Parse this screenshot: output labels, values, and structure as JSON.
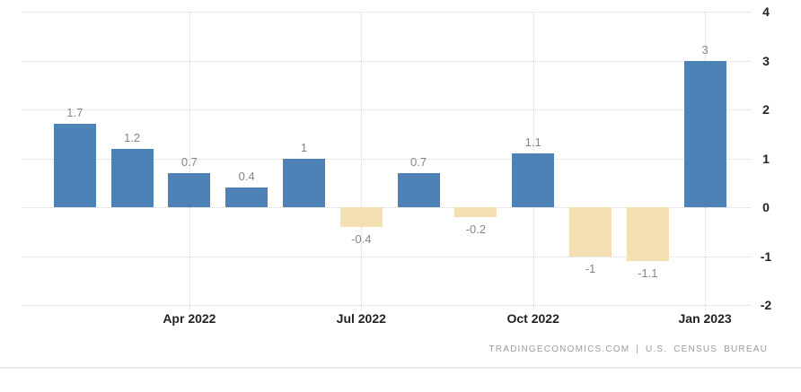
{
  "chart_data": {
    "type": "bar",
    "title": "",
    "xlabel": "",
    "ylabel": "",
    "values": [
      1.7,
      1.2,
      0.7,
      0.4,
      1,
      -0.4,
      0.7,
      -0.2,
      1.1,
      -1,
      -1.1,
      3
    ],
    "bar_value_labels": [
      "1.7",
      "1.2",
      "0.7",
      "0.4",
      "1",
      "-0.4",
      "0.7",
      "-0.2",
      "1.1",
      "-1",
      "-1.1",
      "3"
    ],
    "x_ticks": [
      {
        "label": "Apr 2022",
        "bar_index": 2
      },
      {
        "label": "Jul 2022",
        "bar_index": 5
      },
      {
        "label": "Oct 2022",
        "bar_index": 8
      },
      {
        "label": "Jan 2023",
        "bar_index": 11
      }
    ],
    "y_ticks": [
      "4",
      "3",
      "2",
      "1",
      "0",
      "-1",
      "-2"
    ],
    "ylim": [
      -2,
      4
    ],
    "grid": "dotted",
    "legend": "none",
    "colors": {
      "positive_bar": "#4C82B6",
      "negative_bar": "#F4DFB3",
      "grid": "#D5D5D5",
      "value_label": "#858585",
      "axis_label": "#222222"
    }
  },
  "footer": {
    "attribution": "TRADINGECONOMICS.COM | U.S. CENSUS BUREAU"
  }
}
